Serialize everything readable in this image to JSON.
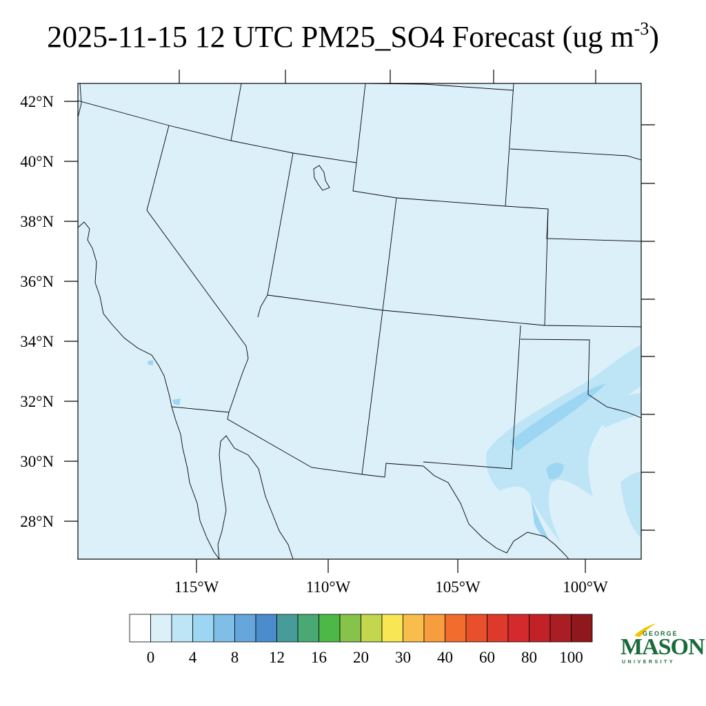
{
  "title": {
    "main": "2025-11-15 12 UTC PM25_SO4 Forecast (ug m",
    "superscript": "-3",
    "close": ")"
  },
  "map": {
    "background_color": "#dcf0fa",
    "lat_labels": [
      "42°N",
      "40°N",
      "38°N",
      "36°N",
      "34°N",
      "32°N",
      "30°N",
      "28°N"
    ],
    "lon_labels": [
      "115°W",
      "110°W",
      "105°W",
      "100°W"
    ]
  },
  "colorbar": {
    "colors": [
      "#ffffff",
      "#dcf0fa",
      "#bde5f6",
      "#9dd6f2",
      "#7fbee6",
      "#65a6dc",
      "#4a8ccc",
      "#479c9a",
      "#4aa874",
      "#4db848",
      "#86c34a",
      "#c2d64e",
      "#f9e654",
      "#f8bd4a",
      "#f89d3e",
      "#f26c2d",
      "#e84f2c",
      "#de3a2b",
      "#d52a2d",
      "#c22128",
      "#a91e25",
      "#8f181c"
    ],
    "tick_labels": [
      "0",
      "4",
      "8",
      "12",
      "16",
      "20",
      "30",
      "40",
      "60",
      "80",
      "100"
    ]
  },
  "logo": {
    "top_text": "GEORGE",
    "main_text": "MASON",
    "bottom_text": "UNIVERSITY",
    "color": "#1a6b3a",
    "accent_color": "#f2c300"
  }
}
